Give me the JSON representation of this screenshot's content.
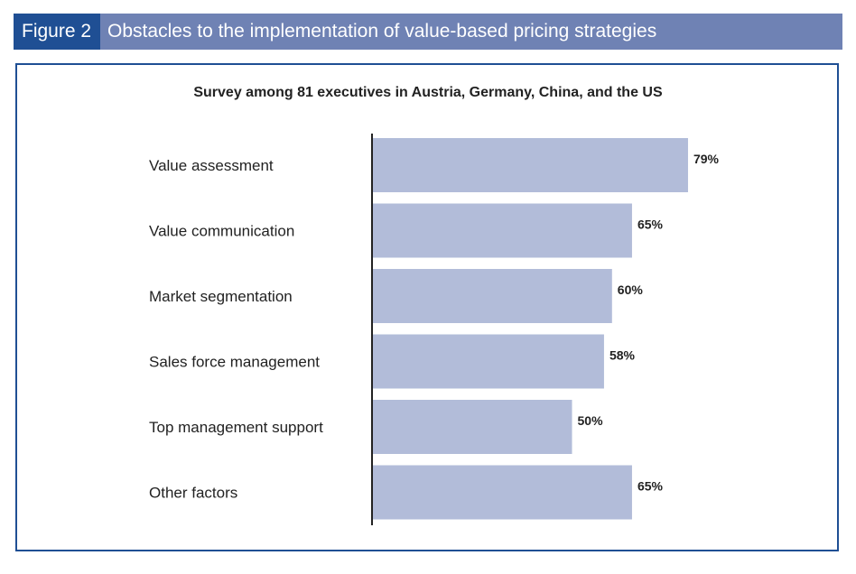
{
  "header": {
    "figure_label": "Figure 2",
    "title": "Obstacles to the implementation of value-based pricing strategies"
  },
  "colors": {
    "header_accent": "#1f4f94",
    "header_bar": "#6f82b4",
    "bar_fill": "#b2bcd9",
    "frame_border": "#1f4f94"
  },
  "chart_data": {
    "type": "bar",
    "orientation": "horizontal",
    "title": "",
    "subtitle": "Survey among 81 executives in Austria, Germany, China, and the US",
    "categories": [
      "Value assessment",
      "Value communication",
      "Market segmentation",
      "Sales force management",
      "Top management support",
      "Other factors"
    ],
    "values": [
      79,
      65,
      60,
      58,
      50,
      65
    ],
    "value_labels": [
      "79%",
      "65%",
      "60%",
      "58%",
      "50%",
      "65%"
    ],
    "unit": "%",
    "xlim": [
      0,
      100
    ],
    "grid": false,
    "legend": "none"
  }
}
